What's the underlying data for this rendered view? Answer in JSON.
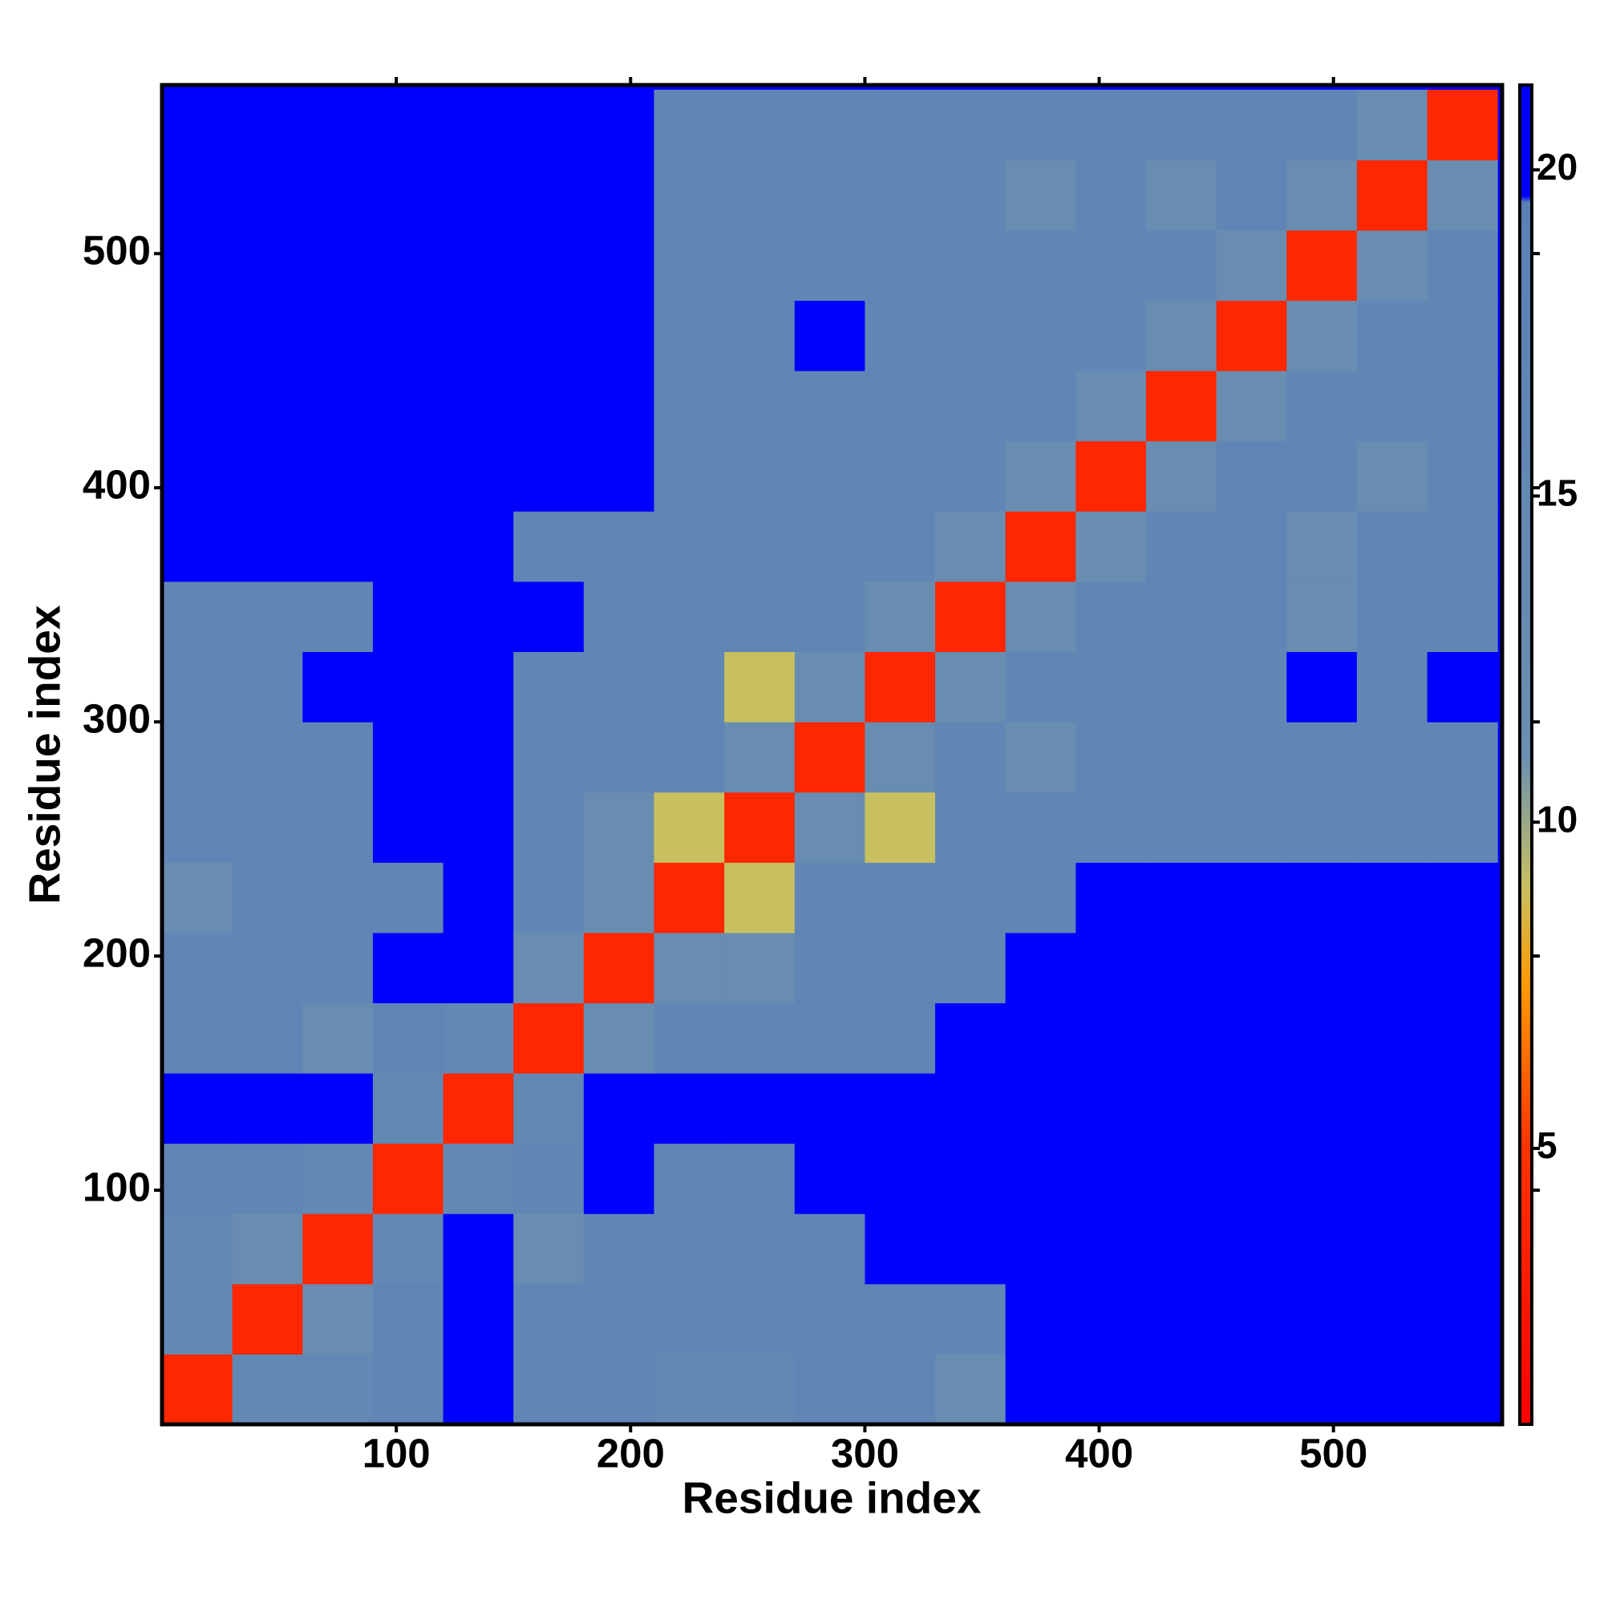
{
  "chart_data": {
    "type": "heatmap",
    "xlabel": "Residue index",
    "ylabel": "Residue index",
    "xbins": [
      0,
      30,
      60,
      90,
      120,
      150,
      180,
      210,
      240,
      270,
      300,
      330,
      360,
      390,
      420,
      450,
      480,
      510,
      540,
      570
    ],
    "ybins": [
      0,
      30,
      60,
      90,
      120,
      150,
      180,
      210,
      240,
      270,
      300,
      330,
      360,
      390,
      420,
      450,
      480,
      510,
      540,
      570
    ],
    "z": [
      [
        4,
        15,
        15,
        16,
        21,
        16,
        16,
        15,
        15,
        16,
        16,
        12,
        21,
        21,
        21,
        21,
        21,
        21,
        21
      ],
      [
        15,
        4,
        12,
        16,
        21,
        16,
        16,
        16,
        16,
        16,
        16,
        16,
        21,
        21,
        21,
        21,
        21,
        21,
        21
      ],
      [
        15,
        12,
        4,
        15,
        21,
        12,
        16,
        16,
        16,
        16,
        21,
        21,
        21,
        21,
        21,
        21,
        21,
        21,
        21
      ],
      [
        16,
        16,
        15,
        4,
        15,
        16,
        21,
        16,
        16,
        21,
        21,
        21,
        21,
        21,
        21,
        21,
        21,
        21,
        21
      ],
      [
        21,
        21,
        21,
        15,
        4,
        15,
        21,
        21,
        21,
        21,
        21,
        21,
        21,
        21,
        21,
        21,
        21,
        21,
        21
      ],
      [
        16,
        16,
        12,
        16,
        15,
        4,
        12,
        16,
        16,
        16,
        16,
        21,
        21,
        21,
        21,
        21,
        21,
        21,
        21
      ],
      [
        16,
        16,
        16,
        21,
        21,
        12,
        4,
        12,
        12,
        16,
        16,
        16,
        21,
        21,
        21,
        21,
        21,
        21,
        21
      ],
      [
        12,
        16,
        16,
        16,
        21,
        16,
        12,
        4,
        9,
        16,
        16,
        16,
        16,
        21,
        21,
        21,
        21,
        21,
        21
      ],
      [
        16,
        16,
        16,
        21,
        21,
        16,
        12,
        9,
        4,
        12,
        9,
        16,
        16,
        16,
        16,
        16,
        16,
        16,
        16
      ],
      [
        16,
        16,
        16,
        21,
        21,
        16,
        16,
        16,
        12,
        4,
        12,
        16,
        12,
        16,
        16,
        16,
        16,
        16,
        16
      ],
      [
        16,
        16,
        21,
        21,
        21,
        16,
        16,
        16,
        9,
        12,
        4,
        12,
        16,
        16,
        16,
        16,
        21,
        16,
        21
      ],
      [
        16,
        16,
        16,
        21,
        21,
        21,
        16,
        16,
        16,
        16,
        12,
        4,
        12,
        16,
        16,
        16,
        12,
        16,
        16
      ],
      [
        21,
        21,
        21,
        21,
        21,
        16,
        16,
        16,
        16,
        16,
        16,
        12,
        4,
        12,
        16,
        16,
        12,
        16,
        16
      ],
      [
        21,
        21,
        21,
        21,
        21,
        21,
        21,
        16,
        16,
        16,
        16,
        16,
        12,
        4,
        12,
        16,
        16,
        12,
        16
      ],
      [
        21,
        21,
        21,
        21,
        21,
        21,
        21,
        16,
        16,
        16,
        16,
        16,
        16,
        12,
        4,
        12,
        16,
        16,
        16
      ],
      [
        21,
        21,
        21,
        21,
        21,
        21,
        21,
        16,
        16,
        21,
        16,
        16,
        16,
        16,
        12,
        4,
        12,
        16,
        16
      ],
      [
        21,
        21,
        21,
        21,
        21,
        21,
        21,
        16,
        16,
        16,
        16,
        16,
        16,
        16,
        16,
        12,
        4,
        12,
        16
      ],
      [
        21,
        21,
        21,
        21,
        21,
        21,
        21,
        16,
        16,
        16,
        16,
        16,
        12,
        16,
        12,
        16,
        12,
        4,
        12
      ],
      [
        21,
        21,
        21,
        21,
        21,
        21,
        21,
        16,
        16,
        16,
        16,
        16,
        16,
        16,
        16,
        16,
        16,
        12,
        4
      ]
    ],
    "xlim": [
      0,
      572
    ],
    "ylim": [
      0,
      572
    ],
    "xticks": [
      100,
      200,
      300,
      400,
      500
    ],
    "yticks": [
      100,
      200,
      300,
      400,
      500
    ],
    "clim": [
      0.77,
      21.3
    ],
    "cticks": [
      5,
      10,
      15,
      20
    ],
    "colorscale": [
      [
        0.77,
        "#ff0000"
      ],
      [
        5,
        "#ff3300"
      ],
      [
        7.5,
        "#ff9900"
      ],
      [
        9,
        "#c8c060"
      ],
      [
        11,
        "#6a8fb0"
      ],
      [
        19.5,
        "#5a80b8"
      ],
      [
        19.6,
        "#0000ff"
      ],
      [
        21.3,
        "#0000ff"
      ]
    ]
  }
}
